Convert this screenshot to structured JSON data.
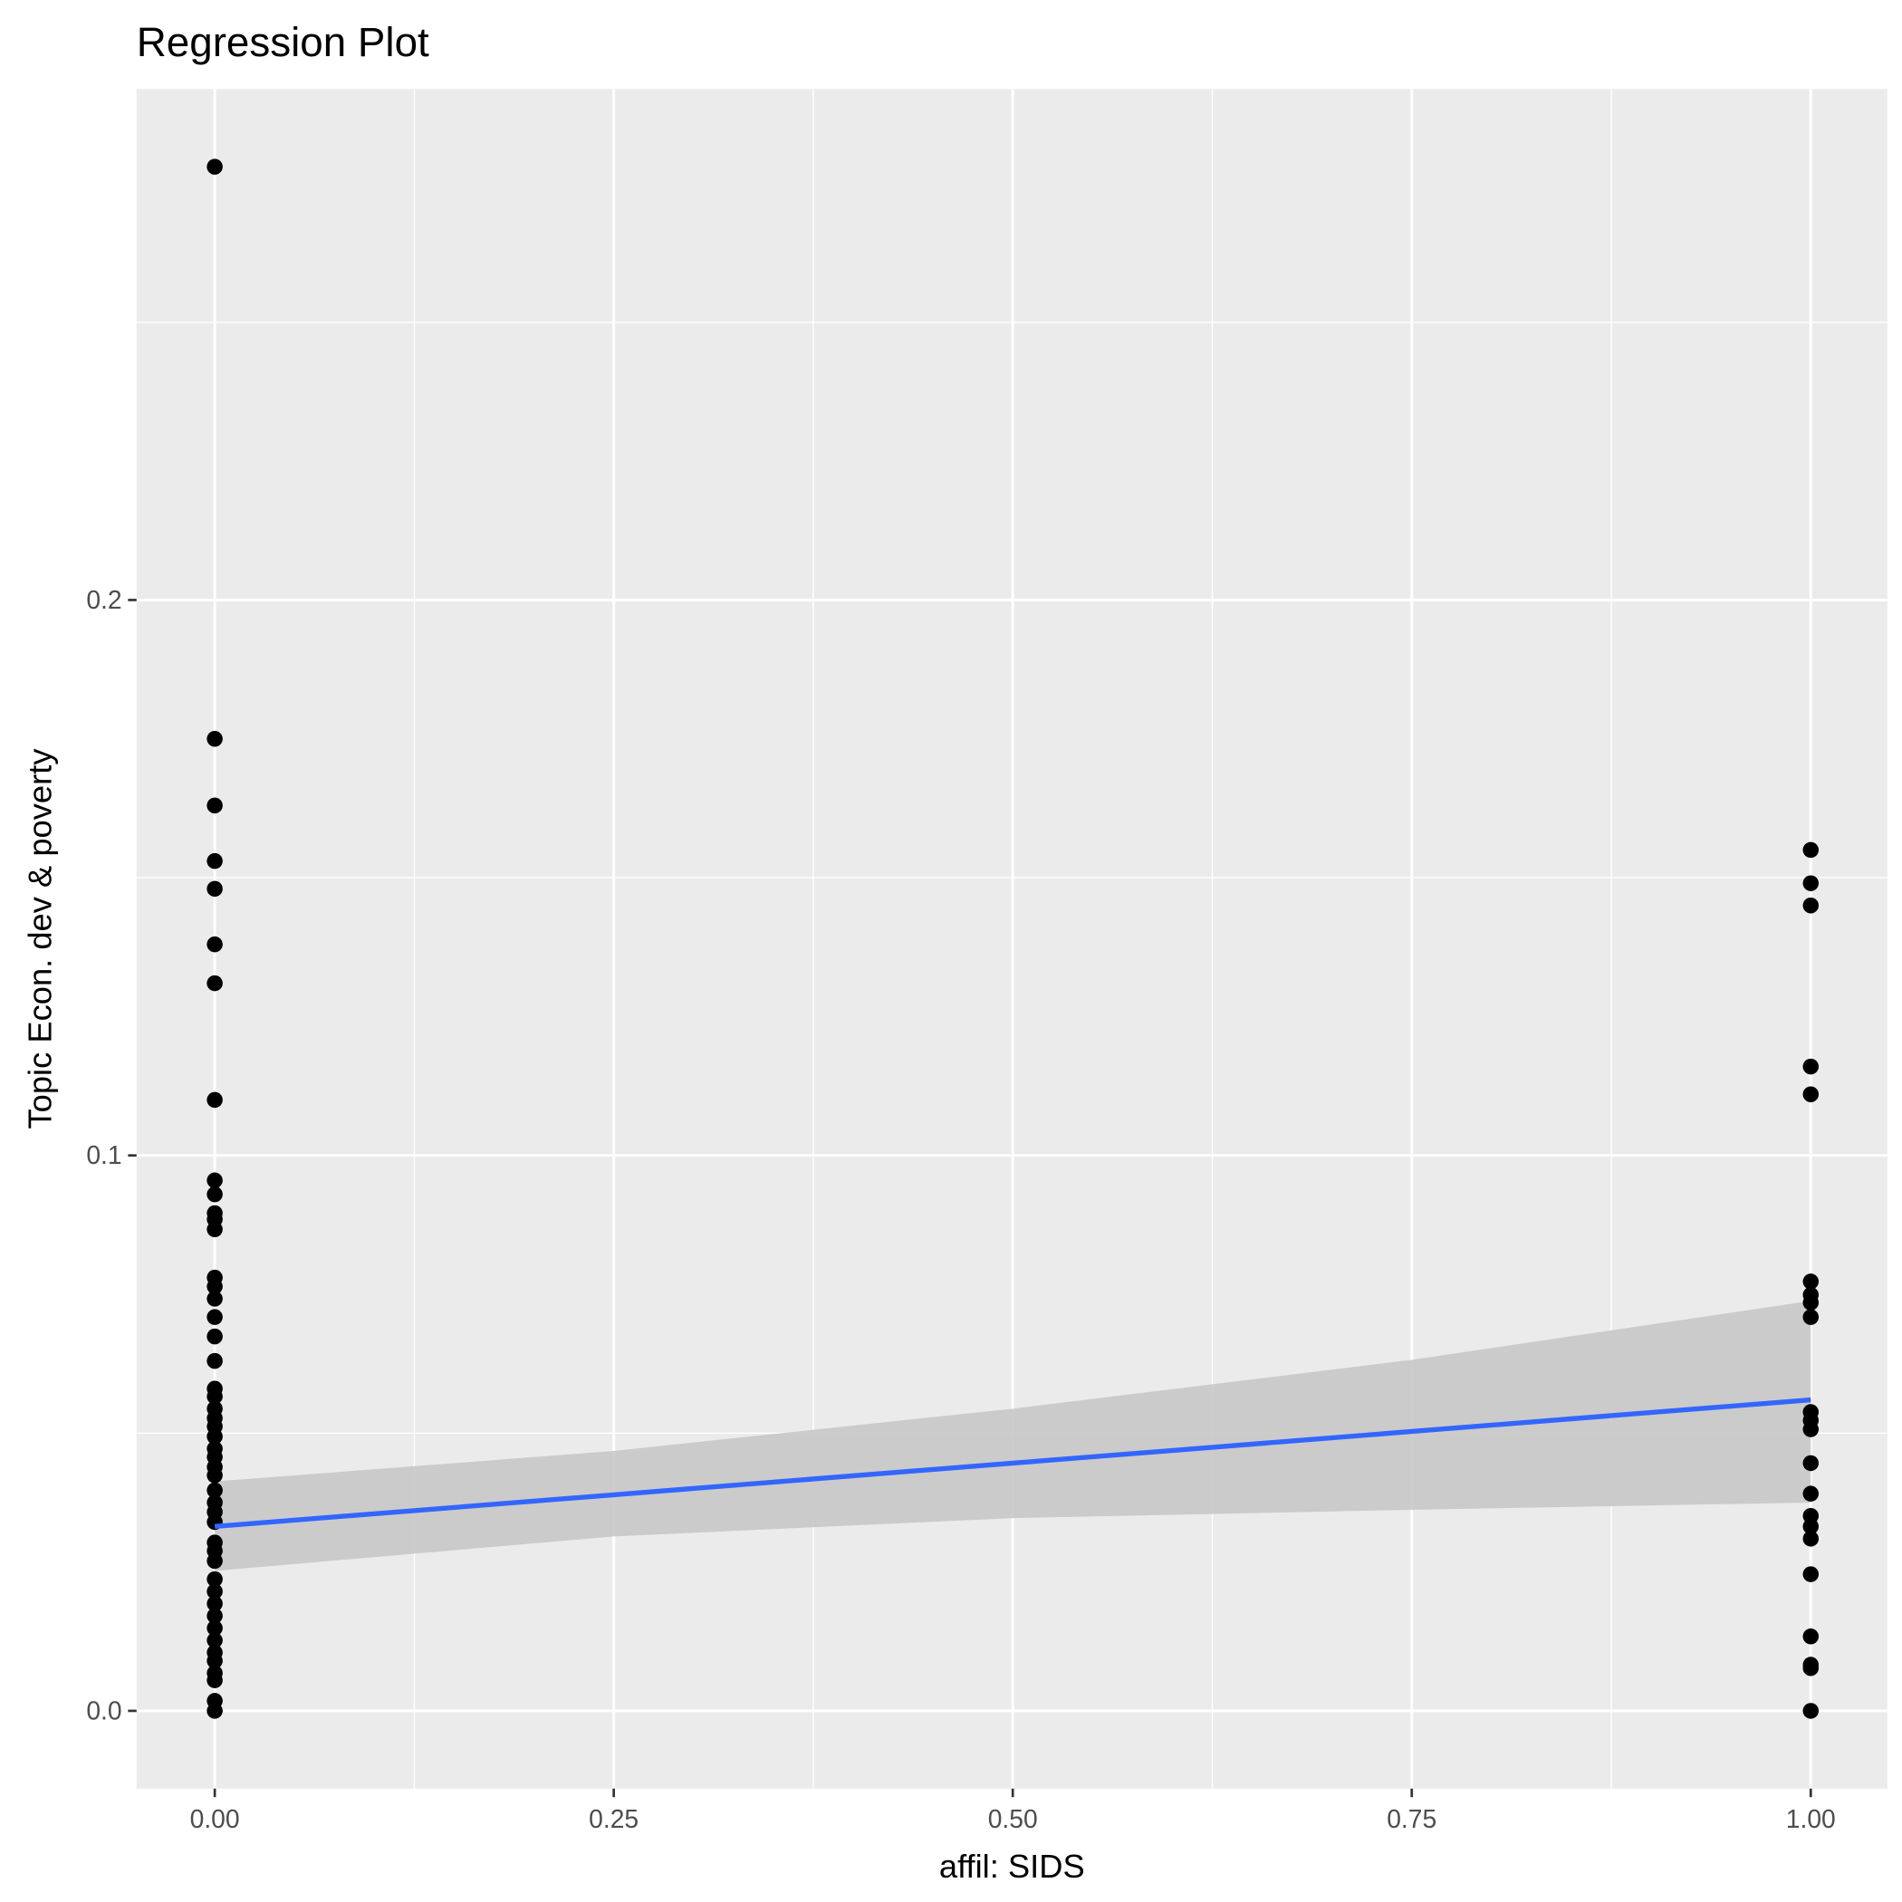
{
  "chart_data": {
    "type": "scatter",
    "title": "Regression Plot",
    "x_label": "affil: SIDS",
    "y_label": "Topic Econ. dev & poverty",
    "xlim": [
      -0.049,
      1.048
    ],
    "ylim": [
      -0.014,
      0.292
    ],
    "xticks": [
      {
        "value": 0,
        "label": "0.00"
      },
      {
        "value": 0.25,
        "label": "0.25"
      },
      {
        "value": 0.5,
        "label": "0.50"
      },
      {
        "value": 0.75,
        "label": "0.75"
      },
      {
        "value": 1,
        "label": "1.00"
      }
    ],
    "yticks": [
      {
        "value": 0,
        "label": "0.0"
      },
      0.1,
      0.2
    ],
    "x_minor_grid": [
      0.125,
      0.375,
      0.625,
      0.875
    ],
    "y_minor_grid": [
      0.05,
      0.15,
      0.25
    ],
    "grid": true,
    "series": [
      {
        "color": "#000000",
        "x": [
          0,
          0,
          0,
          0,
          0,
          0,
          0,
          0,
          0,
          0,
          0,
          0,
          0,
          0,
          0,
          0,
          0,
          0,
          0,
          0,
          0,
          0,
          0,
          0,
          0,
          0,
          0,
          0,
          0,
          0,
          0,
          0,
          0,
          0,
          0,
          0,
          0,
          0,
          0,
          0,
          0,
          0,
          0,
          0,
          0,
          0,
          0,
          0
        ],
        "values": [
          0.278,
          0.175,
          0.163,
          0.153,
          0.148,
          0.138,
          0.131,
          0.11,
          0.0955,
          0.093,
          0.0896,
          0.0885,
          0.0867,
          0.078,
          0.0764,
          0.0742,
          0.0709,
          0.0674,
          0.063,
          0.058,
          0.0566,
          0.0544,
          0.0527,
          0.0512,
          0.0494,
          0.0472,
          0.0457,
          0.0439,
          0.0424,
          0.0397,
          0.0375,
          0.0358,
          0.034,
          0.0303,
          0.0288,
          0.027,
          0.0237,
          0.0215,
          0.0193,
          0.0171,
          0.0149,
          0.0127,
          0.0105,
          0.009,
          0.0068,
          0.0055,
          0.0018,
          0
        ]
      },
      {
        "color": "#000000",
        "x": [
          1,
          1,
          1,
          1,
          1,
          1,
          1,
          1,
          1,
          1,
          1,
          1,
          1,
          1,
          1,
          1,
          1,
          1,
          1,
          1,
          1,
          1
        ],
        "values": [
          0.155,
          0.149,
          0.145,
          0.116,
          0.111,
          0.0773,
          0.0749,
          0.0735,
          0.0709,
          0.0538,
          0.0523,
          0.0507,
          0.0446,
          0.0391,
          0.0351,
          0.0332,
          0.031,
          0.0246,
          0.0134,
          0.0083,
          0.0077,
          0
        ]
      }
    ],
    "fit": {
      "color": "#3366ff",
      "band_color": "#c8c8c8",
      "x": [
        0,
        0.25,
        0.5,
        0.75,
        1
      ],
      "values": [
        0.0332,
        0.0389,
        0.0446,
        0.0503,
        0.056
      ],
      "lower": [
        0.0252,
        0.0314,
        0.0347,
        0.0362,
        0.0375
      ],
      "upper": [
        0.0413,
        0.0468,
        0.0544,
        0.0632,
        0.0738
      ]
    }
  }
}
